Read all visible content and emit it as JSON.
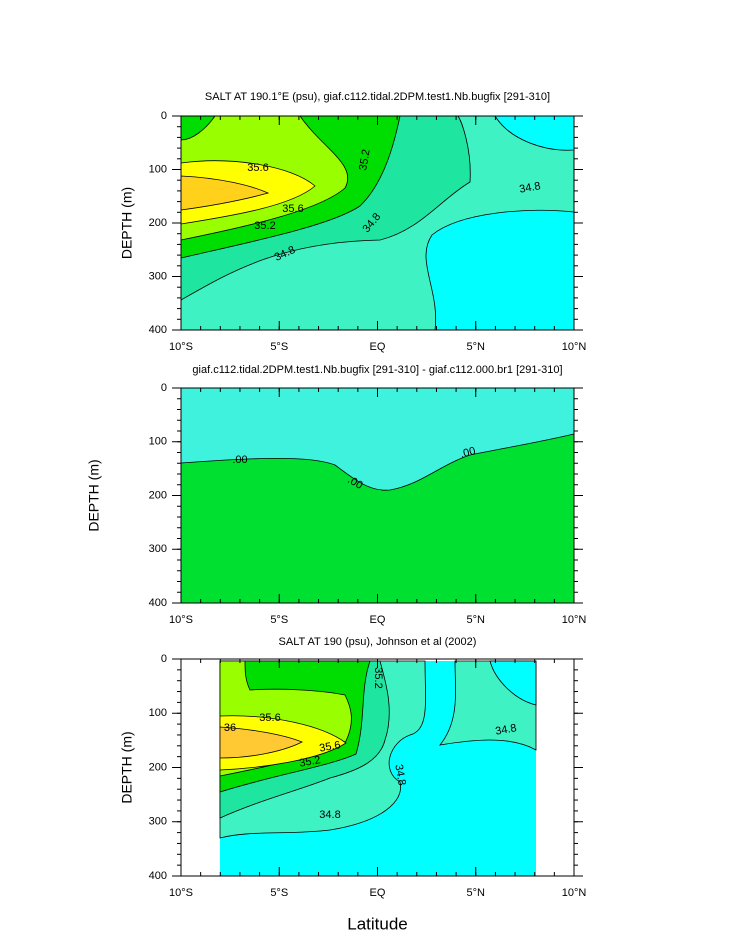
{
  "chart_data": [
    {
      "type": "contour",
      "title": "SALT AT 190.1°E (psu), giaf.c112.tidal.2DPM.test1.Nb.bugfix [291-310]",
      "ylabel": "DEPTH (m)",
      "xlim": [
        -10,
        10
      ],
      "ylim": [
        0,
        400
      ],
      "y_inverted": true,
      "xticks": [
        {
          "value": -10,
          "label": "10°S"
        },
        {
          "value": -5,
          "label": "5°S"
        },
        {
          "value": 0,
          "label": "EQ"
        },
        {
          "value": 5,
          "label": "5°N"
        },
        {
          "value": 10,
          "label": "10°N"
        }
      ],
      "yticks": [
        0,
        100,
        200,
        300,
        400
      ],
      "contour_labels": [
        "35.6",
        "35.6",
        "35.2",
        "35.2",
        "34.8",
        "34.8",
        "34.8"
      ]
    },
    {
      "type": "contour",
      "title": "giaf.c112.tidal.2DPM.test1.Nb.bugfix [291-310] - giaf.c112.000.br1 [291-310]",
      "ylabel": "DEPTH (m)",
      "xlim": [
        -10,
        10
      ],
      "ylim": [
        0,
        400
      ],
      "y_inverted": true,
      "xticks": [
        {
          "value": -10,
          "label": "10°S"
        },
        {
          "value": -5,
          "label": "5°S"
        },
        {
          "value": 0,
          "label": "EQ"
        },
        {
          "value": 5,
          "label": "5°N"
        },
        {
          "value": 10,
          "label": "10°N"
        }
      ],
      "yticks": [
        0,
        100,
        200,
        300,
        400
      ],
      "contour_labels": [
        ".00",
        ".00",
        ".00"
      ]
    },
    {
      "type": "contour",
      "title": "SALT AT 190 (psu), Johnson et al (2002)",
      "ylabel": "DEPTH (m)",
      "xlabel": "Latitude",
      "xlim": [
        -10,
        10
      ],
      "ylim": [
        0,
        400
      ],
      "y_inverted": true,
      "xticks": [
        {
          "value": -10,
          "label": "10°S"
        },
        {
          "value": -5,
          "label": "5°S"
        },
        {
          "value": 0,
          "label": "EQ"
        },
        {
          "value": 5,
          "label": "5°N"
        },
        {
          "value": 10,
          "label": "10°N"
        }
      ],
      "yticks": [
        0,
        100,
        200,
        300,
        400
      ],
      "contour_labels": [
        "36",
        "35.6",
        "35.6",
        "35.2",
        "35.2",
        "34.8",
        "34.8",
        "34.8"
      ]
    }
  ]
}
